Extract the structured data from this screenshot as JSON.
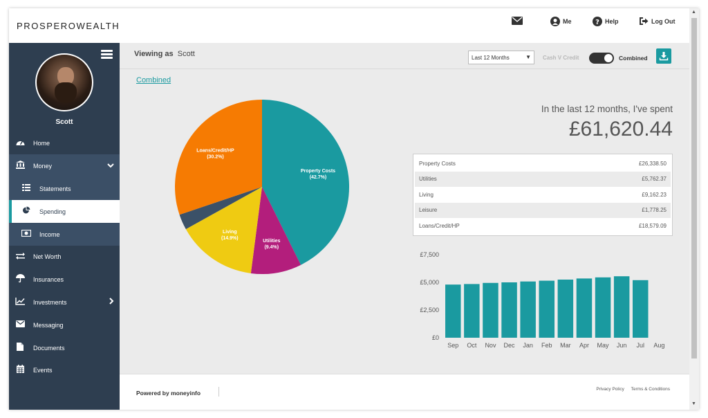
{
  "brand": "PROSPEROWEALTH",
  "topnav": [
    {
      "id": "mail",
      "label": "",
      "icon": "envelope-icon"
    },
    {
      "id": "me",
      "label": "Me",
      "icon": "user-circle-icon"
    },
    {
      "id": "help",
      "label": "Help",
      "icon": "question-circle-icon"
    },
    {
      "id": "logout",
      "label": "Log Out",
      "icon": "sign-out-icon"
    }
  ],
  "user": {
    "name": "Scott"
  },
  "sidebar": {
    "items": [
      {
        "label": "Home",
        "icon": "dashboard-icon"
      },
      {
        "label": "Money",
        "icon": "bank-icon"
      },
      {
        "label": "Statements",
        "icon": "list-icon"
      },
      {
        "label": "Spending",
        "icon": "pie-chart-icon"
      },
      {
        "label": "Income",
        "icon": "money-icon"
      },
      {
        "label": "Net Worth",
        "icon": "exchange-icon"
      },
      {
        "label": "Insurances",
        "icon": "umbrella-icon"
      },
      {
        "label": "Investments",
        "icon": "line-chart-icon"
      },
      {
        "label": "Messaging",
        "icon": "envelope-icon"
      },
      {
        "label": "Documents",
        "icon": "file-icon"
      },
      {
        "label": "Events",
        "icon": "calendar-icon"
      }
    ]
  },
  "viewbar": {
    "viewing_label": "Viewing as",
    "viewing_name": "Scott",
    "period": "Last 12 Months",
    "cash_label": "Cash V Credit",
    "combined_label": "Combined"
  },
  "combined_link": "Combined",
  "summary": {
    "label": "In the last 12 months, I've spent",
    "amount": "£61,620.44"
  },
  "breakdown": [
    {
      "name": "Property Costs",
      "value": "£26,338.50"
    },
    {
      "name": "Utilities",
      "value": "£5,762.37"
    },
    {
      "name": "Living",
      "value": "£9,162.23"
    },
    {
      "name": "Leisure",
      "value": "£1,778.25"
    },
    {
      "name": "Loans/Credit/HP",
      "value": "£18,579.09"
    }
  ],
  "colors": {
    "teal": "#1a9aa0",
    "magenta": "#b31e7c",
    "yellow": "#efcb12",
    "slate": "#3b5168",
    "orange": "#f67b02",
    "sidebar": "#2e3e50"
  },
  "chart_data": [
    {
      "type": "pie",
      "slices": [
        {
          "name": "Property Costs",
          "pct": 42.7,
          "label_pct": "(42.7%)",
          "color": "#1a9aa0"
        },
        {
          "name": "Utilities",
          "pct": 9.4,
          "label_pct": "(9.4%)",
          "color": "#b31e7c"
        },
        {
          "name": "Living",
          "pct": 14.9,
          "label_pct": "(14.9%)",
          "color": "#efcb12"
        },
        {
          "name": "Leisure",
          "pct": 2.9,
          "label_pct": "",
          "color": "#3b5168"
        },
        {
          "name": "Loans/Credit/HP",
          "pct": 30.2,
          "label_pct": "(30.2%)",
          "color": "#f67b02"
        }
      ]
    },
    {
      "type": "bar",
      "categories": [
        "Sep",
        "Oct",
        "Nov",
        "Dec",
        "Jan",
        "Feb",
        "Mar",
        "Apr",
        "May",
        "Jun",
        "Jul",
        "Aug"
      ],
      "values": [
        4800,
        4850,
        4950,
        5000,
        5080,
        5150,
        5250,
        5350,
        5450,
        5550,
        5200,
        0
      ],
      "yticks": [
        "£0",
        "£2,500",
        "£5,000",
        "£7,500"
      ],
      "ylim": [
        0,
        7500
      ],
      "color": "#1a9aa0"
    }
  ],
  "footer": {
    "powered": "Powered by moneyinfo",
    "privacy": "Privacy Policy",
    "terms": "Terms & Conditions"
  }
}
